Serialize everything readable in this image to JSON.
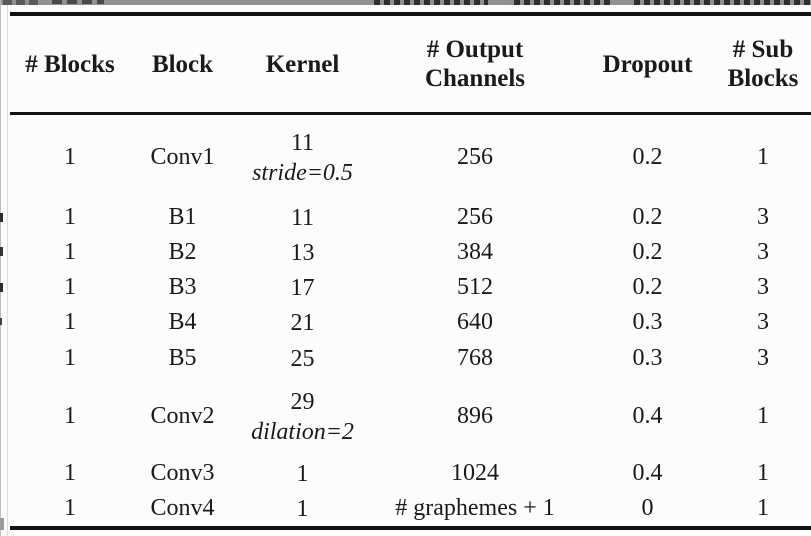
{
  "colors": {
    "background": "#fcfcfc",
    "text": "#1a1a1a",
    "rule": "#121212"
  },
  "table": {
    "columns": [
      {
        "line1": "# Blocks"
      },
      {
        "line1": "Block"
      },
      {
        "line1": "Kernel"
      },
      {
        "line1": "# Output",
        "line2": "Channels"
      },
      {
        "line1": "Dropout"
      },
      {
        "line1": "# Sub",
        "line2": "Blocks"
      }
    ],
    "rows": [
      {
        "num_blocks": "1",
        "block": "Conv1",
        "kernel": "11",
        "kernel_note": "stride=0.5",
        "output_channels": "256",
        "dropout": "0.2",
        "sub_blocks": "1"
      },
      {
        "num_blocks": "1",
        "block": "B1",
        "kernel": "11",
        "output_channels": "256",
        "dropout": "0.2",
        "sub_blocks": "3"
      },
      {
        "num_blocks": "1",
        "block": "B2",
        "kernel": "13",
        "output_channels": "384",
        "dropout": "0.2",
        "sub_blocks": "3"
      },
      {
        "num_blocks": "1",
        "block": "B3",
        "kernel": "17",
        "output_channels": "512",
        "dropout": "0.2",
        "sub_blocks": "3"
      },
      {
        "num_blocks": "1",
        "block": "B4",
        "kernel": "21",
        "output_channels": "640",
        "dropout": "0.3",
        "sub_blocks": "3"
      },
      {
        "num_blocks": "1",
        "block": "B5",
        "kernel": "25",
        "output_channels": "768",
        "dropout": "0.3",
        "sub_blocks": "3"
      },
      {
        "num_blocks": "1",
        "block": "Conv2",
        "kernel": "29",
        "kernel_note": "dilation=2",
        "output_channels": "896",
        "dropout": "0.4",
        "sub_blocks": "1"
      },
      {
        "num_blocks": "1",
        "block": "Conv3",
        "kernel": "1",
        "output_channels": "1024",
        "dropout": "0.4",
        "sub_blocks": "1"
      },
      {
        "num_blocks": "1",
        "block": "Conv4",
        "kernel": "1",
        "output_channels": "# graphemes + 1",
        "dropout": "0",
        "sub_blocks": "1"
      }
    ]
  }
}
